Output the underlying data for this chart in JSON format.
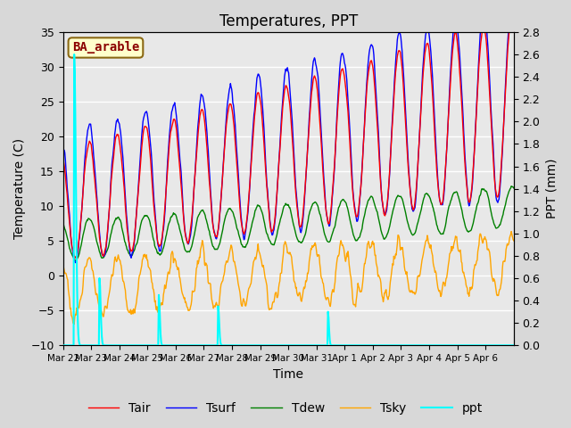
{
  "title": "Temperatures, PPT",
  "xlabel": "Time",
  "ylabel_left": "Temperature (C)",
  "ylabel_right": "PPT (mm)",
  "site_label": "BA_arable",
  "ylim_left": [
    -10,
    35
  ],
  "ylim_right": [
    0.0,
    2.8
  ],
  "yticks_left": [
    -10,
    -5,
    0,
    5,
    10,
    15,
    20,
    25,
    30,
    35
  ],
  "yticks_right": [
    0.0,
    0.2,
    0.4,
    0.6,
    0.8,
    1.0,
    1.2,
    1.4,
    1.6,
    1.8,
    2.0,
    2.2,
    2.4,
    2.6,
    2.8
  ],
  "xtick_labels": [
    "Mar 22",
    "Mar 23",
    "Mar 24",
    "Mar 25",
    "Mar 26",
    "Mar 27",
    "Mar 28",
    "Mar 29",
    "Mar 30",
    "Mar 31",
    "Apr 1",
    "Apr 2",
    "Apr 3",
    "Apr 4",
    "Apr 5",
    "Apr 6"
  ],
  "legend_entries": [
    "Tair",
    "Tsurf",
    "Tdew",
    "Tsky",
    "ppt"
  ],
  "background_color": "#d8d8d8",
  "plot_bg_color": "#e8e8e8",
  "grid_color": "white",
  "title_fontsize": 12,
  "axis_fontsize": 10,
  "legend_fontsize": 10,
  "site_label_fontcolor": "#8b0000",
  "site_label_bg": "#ffffcc",
  "site_label_border": "#8b6914",
  "n_days": 16,
  "pts_per_day": 48
}
